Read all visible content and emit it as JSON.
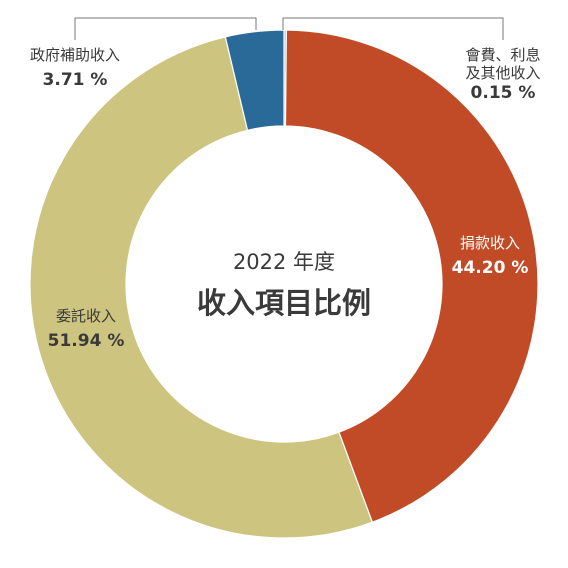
{
  "chart_data": {
    "type": "pie",
    "subtitle": "2022 年度",
    "title": "收入項目比例",
    "categories": [
      "捐款收入",
      "委託收入",
      "政府補助收入",
      "會費、利息及其他收入"
    ],
    "values": [
      44.2,
      51.94,
      3.71,
      0.15
    ],
    "value_labels": [
      "44.20 %",
      "51.94 %",
      "3.71 %",
      "0.15 %"
    ],
    "name_lines": [
      [
        "捐款收入"
      ],
      [
        "委託收入"
      ],
      [
        "政府補助收入"
      ],
      [
        "會費、利息",
        "及其他收入"
      ]
    ],
    "colors": [
      "#c24b27",
      "#cdc47f",
      "#2a6a99",
      "#9cc4e0"
    ],
    "label_colors": [
      "#ffffff",
      "#3a3a3a",
      "#3a3a3a",
      "#3a3a3a"
    ],
    "legend": "none",
    "style": "donut"
  }
}
